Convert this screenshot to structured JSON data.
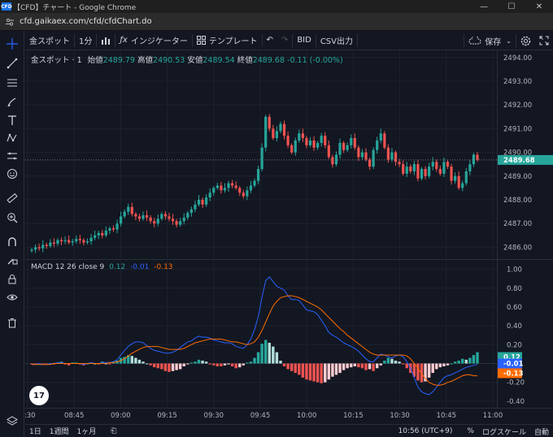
{
  "browser": {
    "favicon_text": "CFD",
    "title": "【CFD】チャート - Google Chrome",
    "url": "cfd.gaikaex.com/cfd/cfdChart.do"
  },
  "toolbar": {
    "symbol": "金スポット",
    "interval": "1分",
    "indicators": "インジケーター",
    "templates": "テンプレート",
    "bid": "BID",
    "csv": "CSV出力",
    "save": "保存"
  },
  "legend": {
    "symbol": "金スポット",
    "interval": "1",
    "open_label": "始値",
    "open": "2489.79",
    "high_label": "高値",
    "high": "2490.53",
    "low_label": "安値",
    "low": "2489.54",
    "close_label": "終値",
    "close": "2489.68",
    "change": "-0.11 (-0.00%)"
  },
  "macd_legend": {
    "name": "MACD",
    "params": "12 26 close 9",
    "hist": "0.12",
    "macd": "-0.01",
    "signal": "-0.13"
  },
  "bottom": {
    "range_1d": "1日",
    "range_1w": "1週間",
    "range_1m": "1ヶ月",
    "time": "10:56 (UTC+9)",
    "percent": "%",
    "log": "ログスケール",
    "auto": "自動"
  },
  "logo": "17",
  "colors": {
    "up": "#26a69a",
    "down": "#ef5350",
    "macd_line": "#2962ff",
    "signal_line": "#ff6d00"
  },
  "chart_data": {
    "type": "candlestick",
    "price_axis_ticks": [
      2486.0,
      2487.0,
      2488.0,
      2489.0,
      2490.0,
      2491.0,
      2492.0,
      2493.0,
      2494.0
    ],
    "price_ylim": [
      2485.5,
      2494.3
    ],
    "last_price": "2489.68",
    "time_axis_ticks": [
      "8:30",
      "08:45",
      "09:00",
      "09:15",
      "09:30",
      "09:45",
      "10:00",
      "10:15",
      "10:30",
      "10:45",
      "11:00"
    ],
    "macd_axis_ticks": [
      1.0,
      0.8,
      0.6,
      0.4,
      0.2,
      0.0,
      -0.2,
      -0.4
    ],
    "macd_ylim": [
      -0.47,
      1.1
    ],
    "macd_badges": [
      "0.12",
      "-0.01",
      "-0.13"
    ],
    "closes": [
      2485.9,
      2486.0,
      2485.95,
      2486.1,
      2486.05,
      2486.2,
      2486.15,
      2486.3,
      2486.25,
      2486.3,
      2486.2,
      2486.25,
      2486.35,
      2486.3,
      2486.2,
      2486.25,
      2486.4,
      2486.5,
      2486.6,
      2486.5,
      2486.7,
      2486.8,
      2486.75,
      2487.0,
      2487.3,
      2487.5,
      2487.7,
      2487.4,
      2487.3,
      2487.2,
      2487.35,
      2487.25,
      2487.1,
      2487.0,
      2487.2,
      2487.4,
      2487.3,
      2487.2,
      2487.1,
      2486.95,
      2487.1,
      2487.25,
      2487.45,
      2487.6,
      2487.8,
      2488.0,
      2487.8,
      2488.1,
      2488.3,
      2488.5,
      2488.6,
      2488.4,
      2488.5,
      2488.7,
      2488.6,
      2488.5,
      2488.3,
      2488.15,
      2488.4,
      2488.6,
      2488.8,
      2489.3,
      2490.2,
      2491.5,
      2491.0,
      2490.6,
      2490.9,
      2491.2,
      2490.7,
      2490.3,
      2490.0,
      2490.5,
      2490.8,
      2490.6,
      2490.3,
      2490.5,
      2490.2,
      2490.4,
      2490.7,
      2490.3,
      2489.8,
      2489.5,
      2489.9,
      2490.4,
      2490.1,
      2490.3,
      2490.6,
      2490.2,
      2489.8,
      2490.0,
      2489.7,
      2489.4,
      2490.1,
      2490.5,
      2490.8,
      2490.2,
      2489.7,
      2490.0,
      2489.6,
      2489.5,
      2489.1,
      2489.4,
      2489.2,
      2489.5,
      2488.9,
      2489.3,
      2489.0,
      2489.4,
      2489.6,
      2489.3,
      2489.1,
      2489.6,
      2489.4,
      2488.8,
      2489.0,
      2488.5,
      2488.7,
      2489.2,
      2489.5,
      2489.9,
      2489.68
    ],
    "macd_hist": [
      -0.01,
      -0.01,
      0.0,
      -0.01,
      -0.01,
      0.0,
      -0.01,
      0.01,
      0.02,
      -0.01,
      -0.02,
      0.01,
      0.01,
      -0.01,
      -0.02,
      0.0,
      0.01,
      0.0,
      -0.01,
      0.02,
      0.0,
      -0.01,
      0.02,
      0.03,
      0.06,
      0.07,
      0.09,
      0.08,
      0.06,
      0.04,
      0.02,
      0.0,
      -0.02,
      -0.04,
      -0.05,
      -0.06,
      -0.08,
      -0.09,
      -0.08,
      -0.07,
      -0.06,
      -0.03,
      -0.01,
      0.01,
      0.02,
      0.04,
      0.03,
      0.02,
      -0.01,
      -0.02,
      -0.03,
      -0.03,
      -0.02,
      -0.01,
      -0.03,
      -0.05,
      -0.04,
      -0.02,
      0.01,
      0.02,
      0.06,
      0.12,
      0.21,
      0.25,
      0.22,
      0.18,
      0.12,
      0.03,
      -0.03,
      -0.06,
      -0.08,
      -0.1,
      -0.12,
      -0.15,
      -0.17,
      -0.18,
      -0.19,
      -0.2,
      -0.21,
      -0.2,
      -0.17,
      -0.14,
      -0.12,
      -0.1,
      -0.07,
      -0.05,
      -0.04,
      -0.03,
      -0.04,
      -0.05,
      -0.07,
      -0.06,
      -0.08,
      -0.05,
      -0.02,
      0.03,
      0.06,
      0.05,
      0.03,
      0.02,
      -0.01,
      -0.05,
      -0.1,
      -0.14,
      -0.18,
      -0.2,
      -0.19,
      -0.15,
      -0.1,
      -0.06,
      -0.04,
      -0.03,
      -0.02,
      0.0,
      0.02,
      0.03,
      0.05,
      0.04,
      0.06,
      0.09,
      0.12
    ],
    "macd_line": [
      -0.01,
      -0.01,
      0.0,
      -0.01,
      -0.01,
      0.0,
      0.0,
      0.01,
      0.01,
      0.0,
      0.0,
      0.0,
      0.0,
      0.0,
      -0.01,
      0.0,
      0.01,
      0.0,
      0.0,
      0.01,
      0.01,
      0.01,
      0.02,
      0.04,
      0.09,
      0.14,
      0.18,
      0.21,
      0.23,
      0.23,
      0.22,
      0.19,
      0.16,
      0.14,
      0.13,
      0.12,
      0.11,
      0.11,
      0.12,
      0.14,
      0.17,
      0.2,
      0.23,
      0.24,
      0.27,
      0.29,
      0.28,
      0.28,
      0.27,
      0.25,
      0.24,
      0.23,
      0.22,
      0.22,
      0.21,
      0.18,
      0.17,
      0.16,
      0.2,
      0.26,
      0.36,
      0.5,
      0.7,
      0.88,
      0.92,
      0.87,
      0.82,
      0.8,
      0.78,
      0.72,
      0.68,
      0.68,
      0.67,
      0.62,
      0.57,
      0.56,
      0.55,
      0.52,
      0.46,
      0.4,
      0.33,
      0.3,
      0.28,
      0.25,
      0.22,
      0.2,
      0.18,
      0.16,
      0.13,
      0.09,
      0.05,
      0.02,
      0.02,
      0.06,
      0.1,
      0.09,
      0.07,
      0.06,
      0.08,
      0.09,
      0.07,
      0.02,
      -0.05,
      -0.15,
      -0.25,
      -0.3,
      -0.32,
      -0.33,
      -0.3,
      -0.25,
      -0.2,
      -0.15,
      -0.13,
      -0.12,
      -0.1,
      -0.08,
      -0.06,
      -0.04,
      -0.03,
      -0.02,
      -0.01
    ],
    "signal_line": [
      -0.01,
      -0.01,
      -0.01,
      -0.01,
      -0.01,
      -0.01,
      0.0,
      0.0,
      0.0,
      0.0,
      0.0,
      0.0,
      0.0,
      0.0,
      0.0,
      0.0,
      0.0,
      0.0,
      0.0,
      0.0,
      0.0,
      0.01,
      0.01,
      0.02,
      0.03,
      0.05,
      0.08,
      0.11,
      0.13,
      0.15,
      0.17,
      0.18,
      0.18,
      0.18,
      0.18,
      0.17,
      0.16,
      0.15,
      0.15,
      0.15,
      0.15,
      0.16,
      0.18,
      0.2,
      0.22,
      0.23,
      0.24,
      0.25,
      0.26,
      0.26,
      0.26,
      0.26,
      0.25,
      0.24,
      0.23,
      0.23,
      0.22,
      0.21,
      0.2,
      0.21,
      0.23,
      0.28,
      0.35,
      0.44,
      0.53,
      0.61,
      0.66,
      0.7,
      0.71,
      0.72,
      0.72,
      0.71,
      0.7,
      0.68,
      0.66,
      0.64,
      0.62,
      0.6,
      0.57,
      0.53,
      0.49,
      0.45,
      0.41,
      0.37,
      0.34,
      0.3,
      0.27,
      0.24,
      0.21,
      0.18,
      0.15,
      0.12,
      0.1,
      0.09,
      0.09,
      0.09,
      0.09,
      0.09,
      0.09,
      0.09,
      0.09,
      0.08,
      0.05,
      0.0,
      -0.05,
      -0.11,
      -0.16,
      -0.2,
      -0.22,
      -0.23,
      -0.23,
      -0.22,
      -0.2,
      -0.19,
      -0.17,
      -0.15,
      -0.13,
      -0.12,
      -0.12,
      -0.13,
      -0.13
    ]
  }
}
